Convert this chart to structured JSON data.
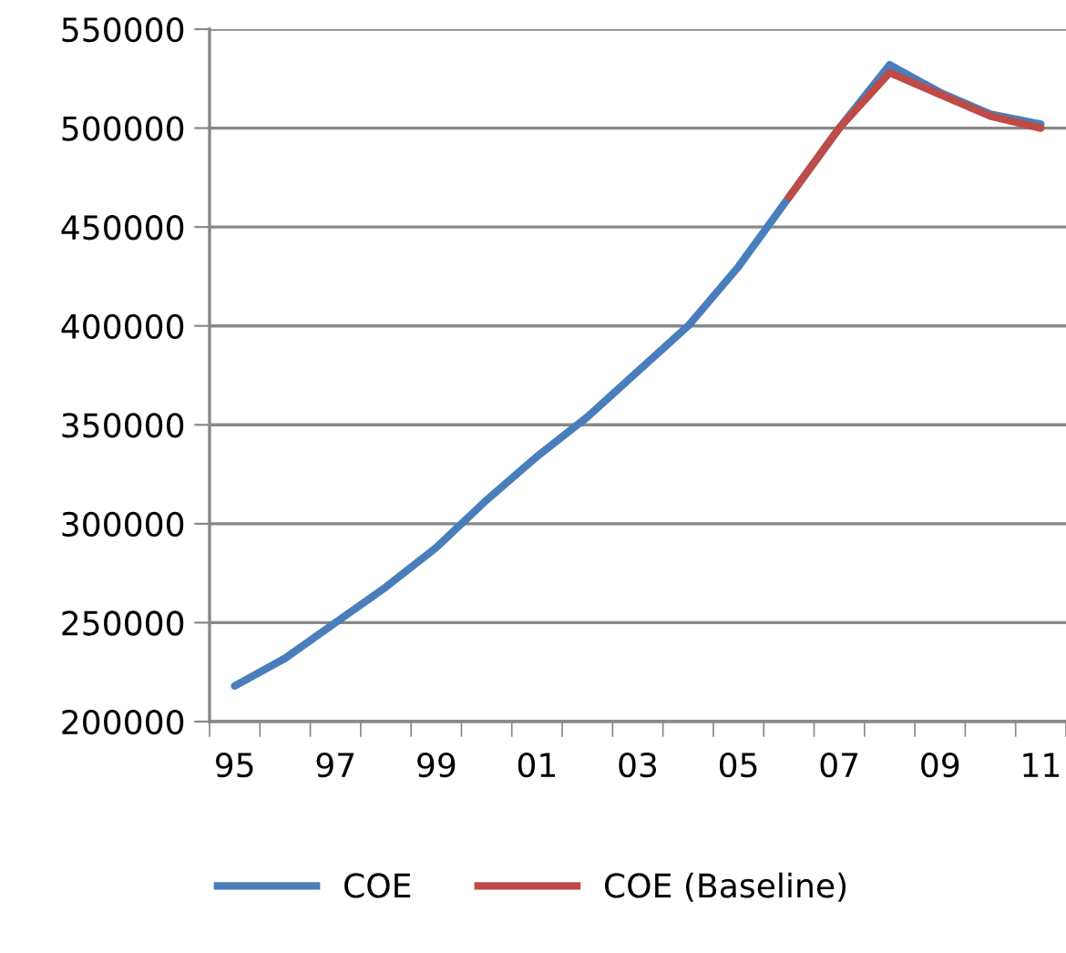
{
  "chart_data": {
    "type": "line",
    "categories": [
      "95",
      null,
      "97",
      null,
      "99",
      null,
      "01",
      null,
      "03",
      null,
      "05",
      null,
      "07",
      null,
      "09",
      null,
      "11"
    ],
    "series": [
      {
        "name": "COE",
        "color": "#4a7ebb",
        "values": [
          218000,
          232000,
          250000,
          268000,
          288000,
          312000,
          334000,
          354000,
          377000,
          400000,
          430000,
          465000,
          500000,
          532000,
          518000,
          507000,
          502000
        ]
      },
      {
        "name": "COE (Baseline)",
        "color": "#be4b48",
        "values": [
          null,
          null,
          null,
          null,
          null,
          null,
          null,
          null,
          null,
          null,
          null,
          465000,
          500000,
          528000,
          517000,
          506000,
          500000
        ]
      }
    ],
    "ylim": [
      200000,
      550000
    ],
    "yticks": [
      200000,
      250000,
      300000,
      350000,
      400000,
      450000,
      500000,
      550000
    ],
    "grid": "y",
    "legend": "bottom",
    "marker": "none",
    "line_style": "solid"
  }
}
